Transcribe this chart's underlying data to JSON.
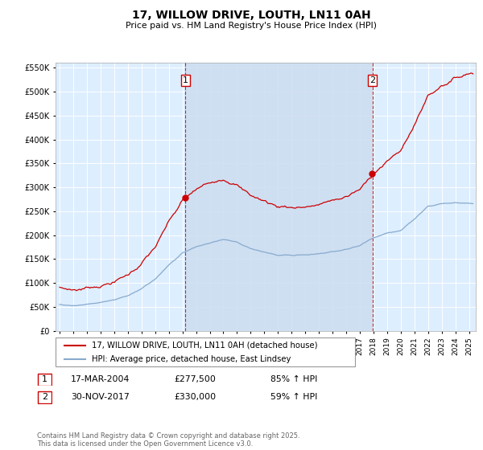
{
  "title": "17, WILLOW DRIVE, LOUTH, LN11 0AH",
  "subtitle": "Price paid vs. HM Land Registry's House Price Index (HPI)",
  "ylim": [
    0,
    560000
  ],
  "yticks": [
    0,
    50000,
    100000,
    150000,
    200000,
    250000,
    300000,
    350000,
    400000,
    450000,
    500000,
    550000
  ],
  "ytick_labels": [
    "£0",
    "£50K",
    "£100K",
    "£150K",
    "£200K",
    "£250K",
    "£300K",
    "£350K",
    "£400K",
    "£450K",
    "£500K",
    "£550K"
  ],
  "xlim_start": 1994.7,
  "xlim_end": 2025.5,
  "sale1_x": 2004.21,
  "sale1_y": 277500,
  "sale2_x": 2017.92,
  "sale2_y": 330000,
  "red_color": "#cc0000",
  "blue_color": "#88aacc",
  "shade_color": "#ccddf0",
  "plot_bg": "#ddeeff",
  "grid_color": "#ffffff",
  "legend_line1": "17, WILLOW DRIVE, LOUTH, LN11 0AH (detached house)",
  "legend_line2": "HPI: Average price, detached house, East Lindsey",
  "annotation1_date": "17-MAR-2004",
  "annotation1_price": "£277,500",
  "annotation1_hpi": "85% ↑ HPI",
  "annotation2_date": "30-NOV-2017",
  "annotation2_price": "£330,000",
  "annotation2_hpi": "59% ↑ HPI",
  "footer": "Contains HM Land Registry data © Crown copyright and database right 2025.\nThis data is licensed under the Open Government Licence v3.0."
}
